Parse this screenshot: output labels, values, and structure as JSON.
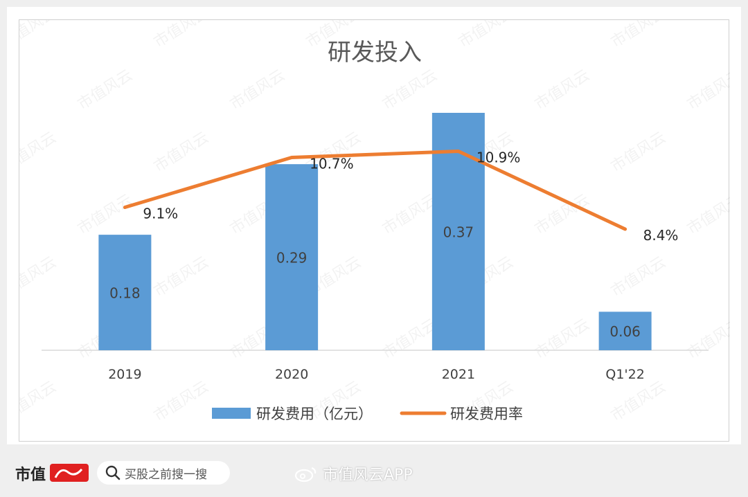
{
  "chart_data": {
    "type": "bar",
    "title": "研发投入",
    "categories": [
      "2019",
      "2020",
      "2021",
      "Q1'22"
    ],
    "series": [
      {
        "name": "研发费用（亿元）",
        "type": "bar",
        "values": [
          0.18,
          0.29,
          0.37,
          0.06
        ],
        "labels": [
          "0.18",
          "0.29",
          "0.37",
          "0.06"
        ],
        "color": "#5b9bd5",
        "axis": "primary"
      },
      {
        "name": "研发费用率",
        "type": "line",
        "values": [
          9.1,
          10.7,
          10.9,
          8.4
        ],
        "labels": [
          "9.1%",
          "10.7%",
          "10.9%",
          "8.4%"
        ],
        "color": "#ed7d31",
        "axis": "secondary"
      }
    ],
    "ylim": [
      0,
      0.37
    ],
    "y2lim": [
      4,
      12
    ],
    "grid": false,
    "legend": "bottom"
  },
  "watermark": "市值风云",
  "footer": {
    "brand": "市值",
    "search_placeholder": "买股之前搜一搜",
    "weibo_handle": "市值风云APP"
  }
}
